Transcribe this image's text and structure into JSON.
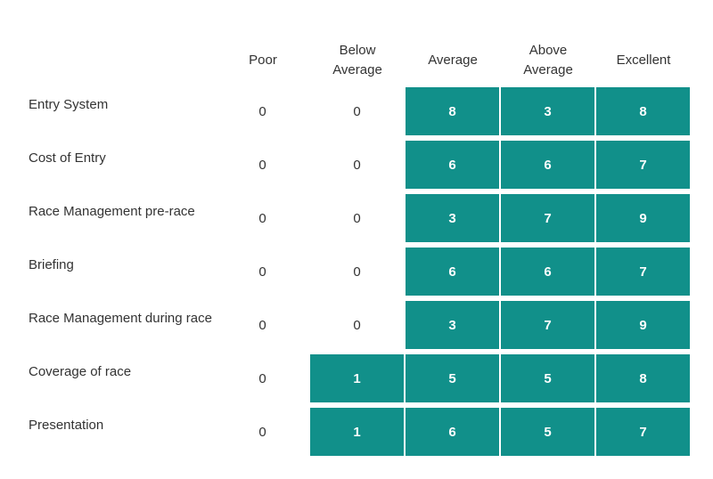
{
  "chart_data": {
    "type": "table",
    "columns": [
      "Poor",
      "Below Average",
      "Average",
      "Above Average",
      "Excellent"
    ],
    "column_lines": [
      [
        "Poor"
      ],
      [
        "Below",
        "Average"
      ],
      [
        "Average"
      ],
      [
        "Above",
        "Average"
      ],
      [
        "Excellent"
      ]
    ],
    "rows": [
      {
        "label": "Entry System",
        "values": [
          0,
          0,
          8,
          3,
          8
        ]
      },
      {
        "label": "Cost of Entry",
        "values": [
          0,
          0,
          6,
          6,
          7
        ]
      },
      {
        "label": "Race Management pre-race",
        "values": [
          0,
          0,
          3,
          7,
          9
        ]
      },
      {
        "label": "Briefing",
        "values": [
          0,
          0,
          6,
          6,
          7
        ]
      },
      {
        "label": "Race Management during race",
        "values": [
          0,
          0,
          3,
          7,
          9
        ]
      },
      {
        "label": "Coverage of race",
        "values": [
          0,
          1,
          5,
          5,
          8
        ]
      },
      {
        "label": "Presentation",
        "values": [
          0,
          1,
          6,
          5,
          7
        ]
      }
    ],
    "highlight_color": "#11908a"
  }
}
